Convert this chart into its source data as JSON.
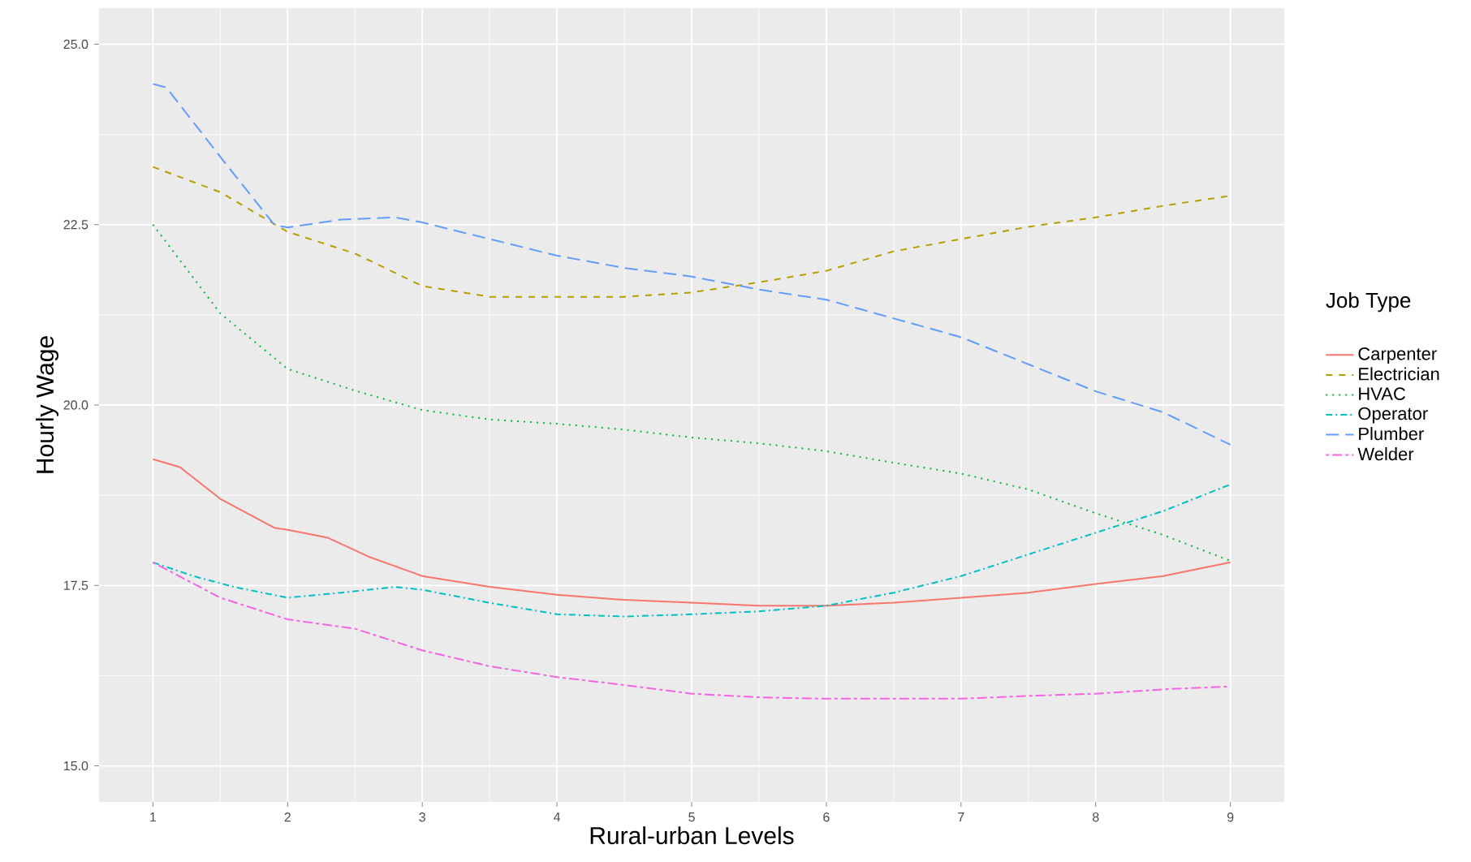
{
  "chart_data": {
    "type": "line",
    "xlabel": "Rural-urban Levels",
    "ylabel": "Hourly Wage",
    "legend_title": "Job Type",
    "legend": "right",
    "grid": true,
    "xlim": [
      0.6,
      9.4
    ],
    "ylim": [
      14.5,
      25.5
    ],
    "xticks": [
      1,
      2,
      3,
      4,
      5,
      6,
      7,
      8,
      9
    ],
    "yticks": [
      {
        "value": 15,
        "label": "15.0"
      },
      {
        "value": 17.5,
        "label": "17.5"
      },
      {
        "value": 20,
        "label": "20.0"
      },
      {
        "value": 22.5,
        "label": "22.5"
      },
      {
        "value": 25,
        "label": "25.0"
      }
    ],
    "series": [
      {
        "name": "Carpenter",
        "color": "#f8766d",
        "line_style": "solid",
        "x": [
          1,
          1.2,
          1.5,
          1.9,
          2,
          2.3,
          2.6,
          3,
          3.5,
          4,
          4.5,
          5,
          5.5,
          6,
          6.5,
          7,
          7.5,
          8,
          8.5,
          9
        ],
        "values": [
          19.25,
          19.14,
          18.7,
          18.3,
          18.27,
          18.16,
          17.9,
          17.63,
          17.48,
          17.37,
          17.3,
          17.26,
          17.22,
          17.22,
          17.26,
          17.33,
          17.4,
          17.52,
          17.63,
          17.82
        ]
      },
      {
        "name": "Electrician",
        "color": "#b79f00",
        "line_style": "dashed",
        "x": [
          1,
          1.5,
          2,
          2.5,
          3,
          3.5,
          4,
          4.5,
          5,
          5.5,
          6,
          6.5,
          7,
          7.5,
          8,
          8.5,
          9
        ],
        "values": [
          23.3,
          22.95,
          22.4,
          22.1,
          21.65,
          21.5,
          21.5,
          21.5,
          21.56,
          21.7,
          21.86,
          22.13,
          22.3,
          22.47,
          22.6,
          22.76,
          22.9
        ]
      },
      {
        "name": "HVAC",
        "color": "#00ba38",
        "line_style": "dotted",
        "x": [
          1,
          1.5,
          2,
          2.5,
          3,
          3.5,
          4,
          4.5,
          5,
          5.5,
          6,
          6.5,
          7,
          7.5,
          8,
          8.5,
          9
        ],
        "values": [
          22.5,
          21.27,
          20.5,
          20.2,
          19.93,
          19.8,
          19.74,
          19.66,
          19.55,
          19.47,
          19.36,
          19.2,
          19.05,
          18.83,
          18.5,
          18.2,
          17.84
        ]
      },
      {
        "name": "Operator",
        "color": "#00bfc4",
        "line_style": "dashdot",
        "x": [
          1,
          1.3,
          1.6,
          2,
          2.4,
          2.8,
          3,
          3.5,
          4,
          4.5,
          5,
          5.5,
          6,
          6.5,
          7,
          7.5,
          8,
          8.5,
          9
        ],
        "values": [
          17.82,
          17.63,
          17.48,
          17.33,
          17.4,
          17.48,
          17.44,
          17.26,
          17.1,
          17.07,
          17.1,
          17.14,
          17.22,
          17.4,
          17.63,
          17.93,
          18.23,
          18.53,
          18.9
        ]
      },
      {
        "name": "Plumber",
        "color": "#619cff",
        "line_style": "longdash",
        "x": [
          1,
          1.1,
          1.5,
          1.9,
          2,
          2.4,
          2.8,
          3,
          3.5,
          4,
          4.5,
          5,
          5.5,
          6,
          7,
          8,
          8.5,
          9
        ],
        "values": [
          24.45,
          24.4,
          23.44,
          22.5,
          22.46,
          22.57,
          22.6,
          22.53,
          22.3,
          22.07,
          21.9,
          21.78,
          21.6,
          21.46,
          20.94,
          20.19,
          19.9,
          19.45
        ]
      },
      {
        "name": "Welder",
        "color": "#f564e3",
        "line_style": "twodash",
        "x": [
          1,
          1.5,
          2,
          2.5,
          3,
          3.5,
          4,
          4.5,
          5,
          5.5,
          6,
          6.5,
          7,
          7.5,
          8,
          8.5,
          9
        ],
        "values": [
          17.82,
          17.33,
          17.03,
          16.9,
          16.6,
          16.38,
          16.23,
          16.12,
          16.0,
          15.95,
          15.93,
          15.93,
          15.93,
          15.97,
          16.0,
          16.06,
          16.1
        ]
      }
    ]
  }
}
